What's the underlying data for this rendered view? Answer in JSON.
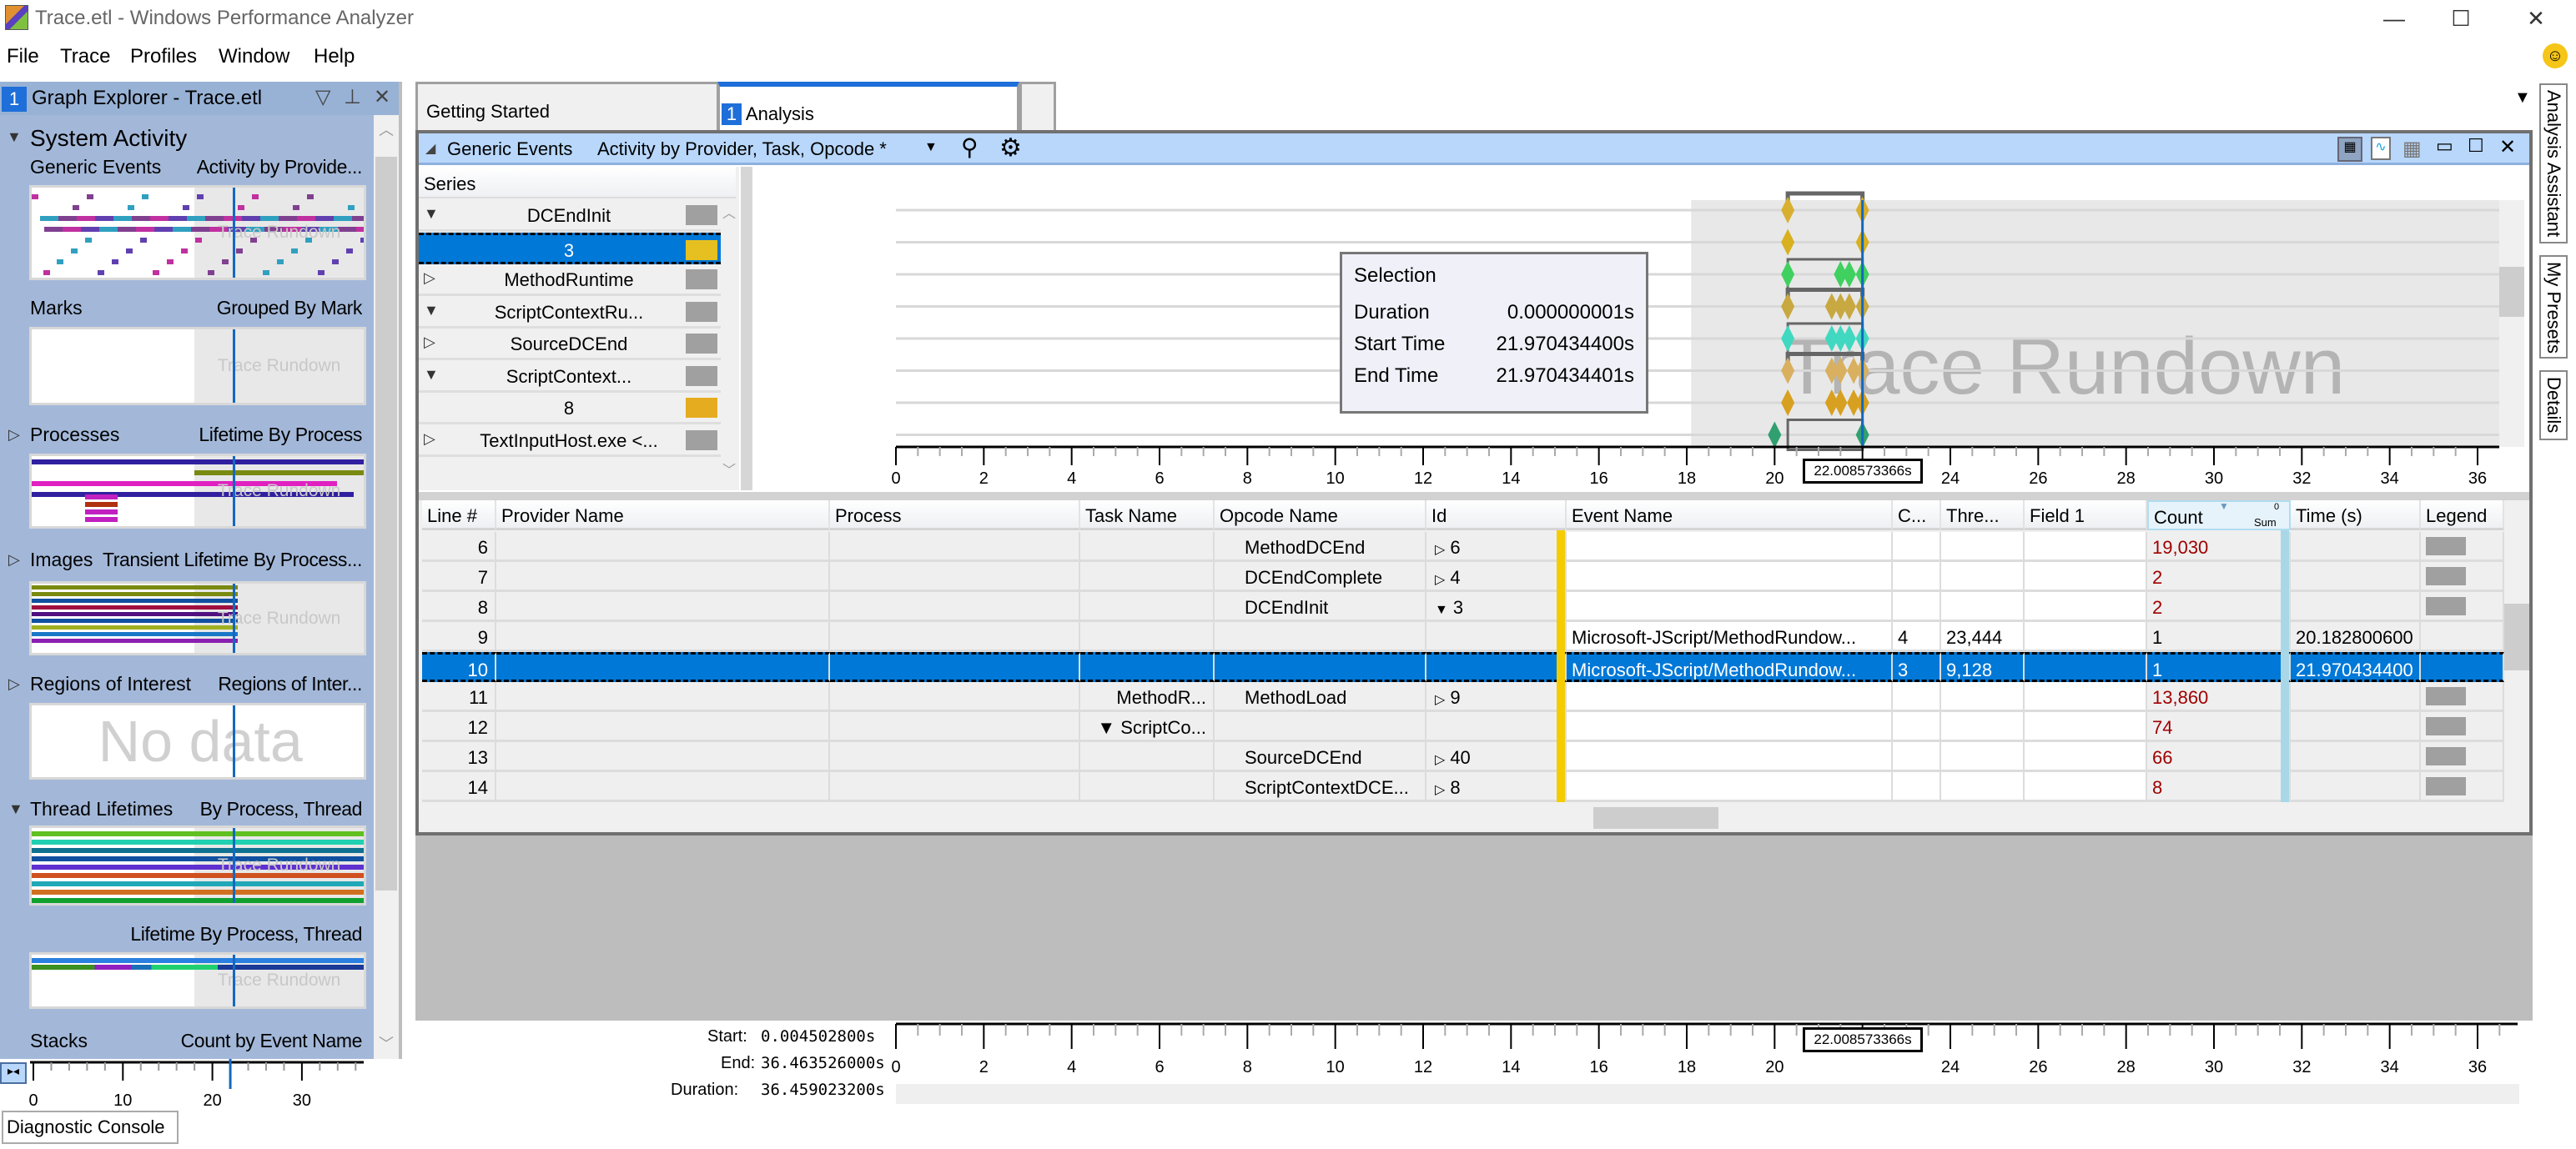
{
  "window": {
    "title": "Trace.etl - Windows Performance Analyzer",
    "minimize": "—",
    "maximize": "☐",
    "close": "✕"
  },
  "menu": [
    "File",
    "Trace",
    "Profiles",
    "Window",
    "Help"
  ],
  "graph_explorer": {
    "number": "1",
    "title": "Graph Explorer - Trace.etl",
    "section": "System Activity",
    "graphs": [
      {
        "name": "Generic Events",
        "preset": "Activity by Provide...",
        "watermark": "Trace Rundown",
        "expander": ""
      },
      {
        "name": "Marks",
        "preset": "Grouped By Mark",
        "watermark": "Trace Rundown",
        "expander": ""
      },
      {
        "name": "Processes",
        "preset": "Lifetime By Process",
        "watermark": "Trace Rundown",
        "expander": "▷"
      },
      {
        "name": "Images",
        "preset": "Transient Lifetime By Process...",
        "watermark": "Trace Rundown",
        "expander": "▷"
      },
      {
        "name": "Regions of Interest",
        "preset": "Regions of Inter...",
        "watermark": "No data",
        "expander": "▷"
      },
      {
        "name": "Thread Lifetimes",
        "preset": "By Process, Thread",
        "watermark": "Trace Rundown",
        "expander": "▼"
      },
      {
        "name": "",
        "preset": "Lifetime By Process, Thread",
        "watermark": "Trace Rundown",
        "expander": ""
      },
      {
        "name": "Stacks",
        "preset": "Count by Event Name",
        "expander": ""
      }
    ],
    "mini_axis_labels": [
      "0",
      "10",
      "20",
      "30"
    ],
    "diagnostic_console": "Diagnostic Console"
  },
  "tabs": [
    {
      "label": "Getting Started",
      "active": false
    },
    {
      "label": "Analysis",
      "number": "1",
      "active": true
    }
  ],
  "analysis": {
    "graph_name": "Generic Events",
    "preset": "Activity by Provider, Task, Opcode *",
    "series_header": "Series",
    "series": [
      {
        "label": "DCEndInit",
        "expander": "▼",
        "color": "#a0a0a0"
      },
      {
        "label": "3",
        "expander": "",
        "color": "#e6c020",
        "selected": true
      },
      {
        "label": "MethodRuntime",
        "expander": "▷",
        "color": "#a0a0a0"
      },
      {
        "label": "ScriptContextRu...",
        "expander": "▼",
        "color": "#a0a0a0"
      },
      {
        "label": "SourceDCEnd",
        "expander": "▷",
        "color": "#a0a0a0"
      },
      {
        "label": "ScriptContext...",
        "expander": "▼",
        "color": "#a0a0a0"
      },
      {
        "label": "8",
        "expander": "",
        "color": "#e6ac20"
      },
      {
        "label": "TextInputHost.exe <...",
        "expander": "▷",
        "color": "#a0a0a0"
      }
    ],
    "watermark": "Trace Rundown",
    "axis": {
      "min": 0,
      "max": 36,
      "labels": [
        "0",
        "2",
        "4",
        "6",
        "8",
        "10",
        "12",
        "14",
        "16",
        "18",
        "20",
        "",
        "24",
        "26",
        "28",
        "30",
        "32",
        "34",
        "36"
      ]
    },
    "cursor_label": "22.008573366s",
    "rundown_start": 18.1,
    "markers": [
      {
        "row": 0,
        "times": [
          20.3,
          22.0
        ],
        "color": "#d8b030"
      },
      {
        "row": 1,
        "times": [
          20.3,
          22.0
        ],
        "color": "#d8b020"
      },
      {
        "row": 2,
        "times": [
          20.3,
          21.5,
          21.7,
          22.0
        ],
        "color": "#40d060"
      },
      {
        "row": 3,
        "times": [
          20.3,
          21.3,
          21.5,
          21.7,
          22.0
        ],
        "color": "#c8a840"
      },
      {
        "row": 4,
        "times": [
          20.3,
          21.3,
          21.5,
          21.7,
          22.0
        ],
        "color": "#40d8c0"
      },
      {
        "row": 5,
        "times": [
          20.3,
          21.3,
          21.5,
          21.8,
          22.0
        ],
        "color": "#d8b060"
      },
      {
        "row": 6,
        "times": [
          20.3,
          21.3,
          21.5,
          21.8,
          22.0
        ],
        "color": "#d8a020"
      },
      {
        "row": 7,
        "times": [
          20.0,
          22.0
        ],
        "color": "#30a070"
      }
    ],
    "selection": {
      "title": "Selection",
      "rows": [
        {
          "label": "Duration",
          "value": "0.000000001s"
        },
        {
          "label": "Start Time",
          "value": "21.970434400s"
        },
        {
          "label": "End Time",
          "value": "21.970434401s"
        }
      ]
    },
    "table": {
      "columns": [
        "Line #",
        "Provider Name",
        "Process",
        "Task Name",
        "Opcode Name",
        "Id",
        "Event Name",
        "C...",
        "Thre...",
        "Field 1",
        "Count",
        "Time (s)",
        "Legend"
      ],
      "count_aggregation": "Sum",
      "count_sort": "0",
      "rows": [
        {
          "line": "6",
          "task": "",
          "opcode": "MethodDCEnd",
          "id_exp": "▷",
          "id": "6",
          "event": "",
          "c": "",
          "thread": "",
          "field1": "",
          "count": "19,030",
          "time": "",
          "legend": true
        },
        {
          "line": "7",
          "task": "",
          "opcode": "DCEndComplete",
          "id_exp": "▷",
          "id": "4",
          "event": "",
          "c": "",
          "thread": "",
          "field1": "",
          "count": "2",
          "time": "",
          "legend": true
        },
        {
          "line": "8",
          "task": "",
          "opcode": "DCEndInit",
          "id_exp": "▼",
          "id": "3",
          "event": "",
          "c": "",
          "thread": "",
          "field1": "",
          "count": "2",
          "time": "",
          "legend": true
        },
        {
          "line": "9",
          "task": "",
          "opcode": "",
          "id_exp": "",
          "id": "",
          "event": "Microsoft-JScript/MethodRundow...",
          "c": "4",
          "thread": "23,444",
          "field1": "",
          "count": "1",
          "time": "20.182800600",
          "legend": false
        },
        {
          "line": "10",
          "task": "",
          "opcode": "",
          "id_exp": "",
          "id": "",
          "event": "Microsoft-JScript/MethodRundow...",
          "c": "3",
          "thread": "9,128",
          "field1": "",
          "count": "1",
          "time": "21.970434400",
          "legend": false,
          "selected": true
        },
        {
          "line": "11",
          "task": "MethodR...",
          "opcode": "MethodLoad",
          "id_exp": "▷",
          "id": "9",
          "event": "",
          "c": "",
          "thread": "",
          "field1": "",
          "count": "13,860",
          "time": "",
          "legend": true
        },
        {
          "line": "12",
          "task": "▼ ScriptCo...",
          "opcode": "",
          "id_exp": "",
          "id": "",
          "event": "",
          "c": "",
          "thread": "",
          "field1": "",
          "count": "74",
          "time": "",
          "legend": true
        },
        {
          "line": "13",
          "task": "",
          "opcode": "SourceDCEnd",
          "id_exp": "▷",
          "id": "40",
          "event": "",
          "c": "",
          "thread": "",
          "field1": "",
          "count": "66",
          "time": "",
          "legend": true
        },
        {
          "line": "14",
          "task": "",
          "opcode": "ScriptContextDCE...",
          "id_exp": "▷",
          "id": "8",
          "event": "",
          "c": "",
          "thread": "",
          "field1": "",
          "count": "8",
          "time": "",
          "legend": true
        }
      ]
    }
  },
  "timeline": {
    "start_label": "Start:",
    "start": "0.004502800s",
    "end_label": "End:",
    "end": "36.463526000s",
    "duration_label": "Duration:",
    "duration": "36.459023200s",
    "cursor_label": "22.008573366s"
  },
  "side_tabs": [
    "Analysis Assistant",
    "My Presets",
    "Details"
  ],
  "colors": {
    "accent": "#0078d7",
    "panel": "#a3b8d9",
    "header": "#b8d7fb",
    "aggregate_count": "#a00000"
  }
}
